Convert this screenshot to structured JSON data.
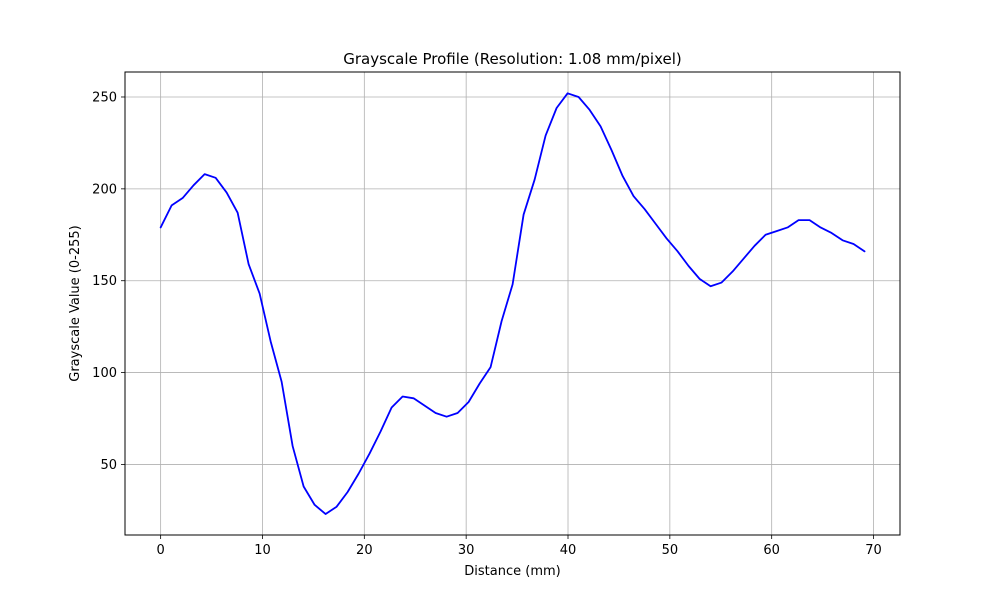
{
  "chart_data": {
    "type": "line",
    "title": "Grayscale Profile (Resolution: 1.08 mm/pixel)",
    "xlabel": "Distance (mm)",
    "ylabel": "Grayscale Value (0-255)",
    "xlim": [
      -3.5,
      72.6
    ],
    "ylim": [
      11.6,
      263.6
    ],
    "xticks": [
      0,
      10,
      20,
      30,
      40,
      50,
      60,
      70
    ],
    "yticks": [
      50,
      100,
      150,
      200,
      250
    ],
    "grid": true,
    "line_color": "#0000ff",
    "grid_color": "#b0b0b0",
    "series": [
      {
        "x": [
          0,
          1.08,
          2.16,
          3.24,
          4.32,
          5.4,
          6.48,
          7.56,
          8.64,
          9.72,
          10.8,
          11.88,
          12.96,
          14.04,
          15.12,
          16.2,
          17.28,
          18.36,
          19.44,
          20.52,
          21.6,
          22.68,
          23.76,
          24.84,
          25.92,
          27.0,
          28.08,
          29.16,
          30.24,
          31.32,
          32.4,
          33.48,
          34.56,
          35.64,
          36.72,
          37.8,
          38.88,
          39.96,
          41.04,
          42.12,
          43.2,
          44.28,
          45.36,
          46.44,
          47.52,
          48.6,
          49.68,
          50.76,
          51.84,
          52.92,
          54.0,
          55.08,
          56.16,
          57.24,
          58.32,
          59.4,
          60.48,
          61.56,
          62.64,
          63.72,
          64.8,
          65.88,
          66.96,
          68.04,
          69.12
        ],
        "values": [
          179,
          191,
          195,
          202,
          208,
          206,
          198,
          187,
          159,
          143,
          117,
          95,
          60,
          38,
          28,
          23,
          27,
          35,
          45,
          56,
          68,
          81,
          87,
          86,
          82,
          78,
          76,
          78,
          84,
          94,
          103,
          128,
          148,
          186,
          205,
          229,
          244,
          252,
          250,
          243,
          234,
          221,
          207,
          196,
          189,
          181,
          173,
          166,
          158,
          151,
          147,
          149,
          155,
          162,
          169,
          175,
          177,
          179,
          183,
          183,
          179,
          176,
          172,
          170,
          166
        ]
      }
    ]
  }
}
